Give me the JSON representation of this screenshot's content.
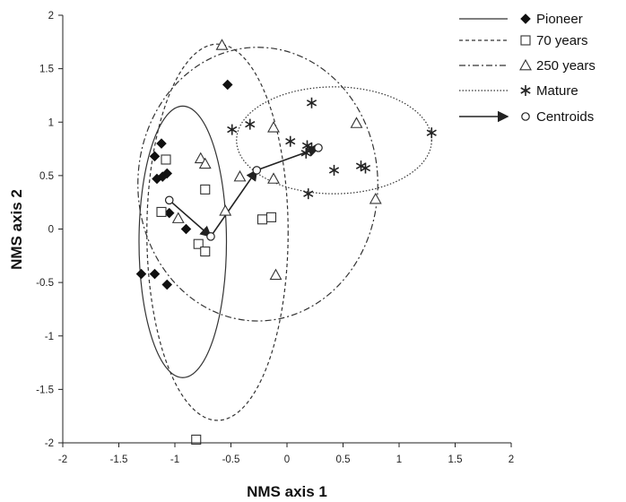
{
  "chart_data": {
    "type": "scatter",
    "title": "",
    "xlabel": "NMS axis 1",
    "ylabel": "NMS axis 2",
    "xlim": [
      -2,
      2
    ],
    "ylim": [
      -2,
      2
    ],
    "xticks": [
      -2,
      -1.5,
      -1,
      -0.5,
      0,
      0.5,
      1,
      1.5,
      2
    ],
    "yticks": [
      -2,
      -1.5,
      -1,
      -0.5,
      0,
      0.5,
      1,
      1.5,
      2
    ],
    "xtick_labels": [
      "-2",
      "-1.5",
      "-1",
      "-0.5",
      "0",
      "0.5",
      "1",
      "1.5",
      "2"
    ],
    "ytick_labels": [
      "-2",
      "-1.5",
      "-1",
      "-0.5",
      "0",
      "0.5",
      "1",
      "1.5",
      "2"
    ],
    "grid": false,
    "legend_position": "top-right",
    "series": [
      {
        "name": "Pioneer",
        "marker": "filled-diamond",
        "line_style": "solid",
        "points": [
          [
            -0.53,
            1.35
          ],
          [
            -1.12,
            0.8
          ],
          [
            -1.18,
            0.68
          ],
          [
            -1.07,
            0.52
          ],
          [
            -1.11,
            0.49
          ],
          [
            -1.16,
            0.47
          ],
          [
            -1.05,
            0.15
          ],
          [
            -0.9,
            0.0
          ],
          [
            -1.3,
            -0.42
          ],
          [
            -1.18,
            -0.42
          ],
          [
            -1.07,
            -0.52
          ]
        ]
      },
      {
        "name": "70 years",
        "marker": "open-square",
        "line_style": "dashed",
        "points": [
          [
            -1.08,
            0.65
          ],
          [
            -0.73,
            0.37
          ],
          [
            -1.12,
            0.16
          ],
          [
            -0.79,
            -0.14
          ],
          [
            -0.73,
            -0.21
          ],
          [
            -0.22,
            0.09
          ],
          [
            -0.14,
            0.11
          ],
          [
            -0.81,
            -1.97
          ]
        ]
      },
      {
        "name": "250 years",
        "marker": "open-triangle",
        "line_style": "dash-dot",
        "points": [
          [
            -0.58,
            1.72
          ],
          [
            -0.77,
            0.66
          ],
          [
            -0.73,
            0.61
          ],
          [
            -0.12,
            0.95
          ],
          [
            0.62,
            0.99
          ],
          [
            -0.42,
            0.49
          ],
          [
            -0.12,
            0.47
          ],
          [
            -0.55,
            0.17
          ],
          [
            -0.97,
            0.1
          ],
          [
            0.79,
            0.28
          ],
          [
            -0.1,
            -0.43
          ]
        ]
      },
      {
        "name": "Mature",
        "marker": "asterisk",
        "line_style": "dotted",
        "points": [
          [
            0.22,
            1.18
          ],
          [
            -0.33,
            0.98
          ],
          [
            -0.49,
            0.93
          ],
          [
            0.03,
            0.82
          ],
          [
            0.18,
            0.78
          ],
          [
            0.22,
            0.76
          ],
          [
            0.17,
            0.71
          ],
          [
            0.42,
            0.55
          ],
          [
            0.66,
            0.59
          ],
          [
            0.7,
            0.57
          ],
          [
            0.19,
            0.33
          ],
          [
            1.29,
            0.9
          ]
        ]
      },
      {
        "name": "Centroids",
        "marker": "small-open-circle",
        "line_style": "arrow",
        "points": [
          [
            -1.05,
            0.27
          ],
          [
            -0.68,
            -0.07
          ],
          [
            -0.27,
            0.55
          ],
          [
            0.28,
            0.76
          ]
        ]
      }
    ],
    "ellipses": [
      {
        "series": "Pioneer",
        "cx": -0.93,
        "cy": -0.12,
        "rx": 0.39,
        "ry": 1.27,
        "angle": 0
      },
      {
        "series": "70 years",
        "cx": -0.62,
        "cy": -0.03,
        "rx": 0.63,
        "ry": 1.76,
        "angle": 0
      },
      {
        "series": "250 years",
        "cx": -0.26,
        "cy": 0.42,
        "rx": 1.07,
        "ry": 1.28,
        "angle": 0
      },
      {
        "series": "Mature",
        "cx": 0.42,
        "cy": 0.83,
        "rx": 0.87,
        "ry": 0.5,
        "angle": 0
      }
    ],
    "arrows": [
      [
        [
          -1.05,
          0.27
        ],
        [
          -0.68,
          -0.07
        ]
      ],
      [
        [
          -0.68,
          -0.07
        ],
        [
          -0.27,
          0.55
        ]
      ],
      [
        [
          -0.27,
          0.55
        ],
        [
          0.28,
          0.76
        ]
      ]
    ]
  },
  "colors": {
    "axis": "#222222",
    "pioneer": "#111111",
    "seventy": "#333333",
    "two_fifty": "#333333",
    "mature": "#333333",
    "centroid": "#222222"
  }
}
